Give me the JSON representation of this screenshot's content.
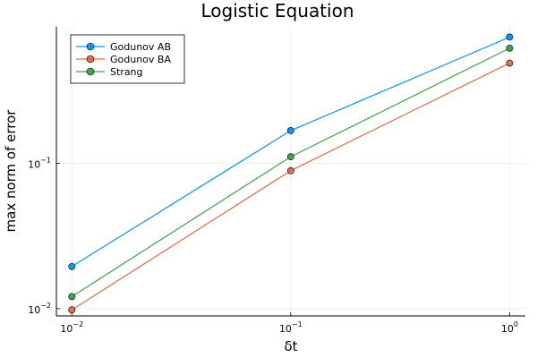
{
  "chart_data": {
    "type": "line",
    "title": "Logistic Equation",
    "xlabel": "δt",
    "ylabel": "max norm of error",
    "xscale": "log",
    "yscale": "log",
    "x": [
      0.01,
      0.1,
      1.0
    ],
    "xlim": [
      0.0085,
      1.18
    ],
    "ylim": [
      0.0089,
      0.87
    ],
    "xticks": [
      {
        "value": 0.01,
        "base": "10",
        "exp": "−2"
      },
      {
        "value": 0.1,
        "base": "10",
        "exp": "−1"
      },
      {
        "value": 1.0,
        "base": "10",
        "exp": "0"
      }
    ],
    "yticks": [
      {
        "value": 0.01,
        "base": "10",
        "exp": "−2"
      },
      {
        "value": 0.1,
        "base": "10",
        "exp": "−1"
      }
    ],
    "grid": true,
    "legend_position": "top-left",
    "series": [
      {
        "name": "Godunov AB",
        "color": "#009AFA",
        "values": [
          0.0195,
          0.168,
          0.74
        ]
      },
      {
        "name": "Godunov BA",
        "color": "#E26F46",
        "values": [
          0.0098,
          0.089,
          0.49
        ]
      },
      {
        "name": "Strang",
        "color": "#3EA44E",
        "values": [
          0.0121,
          0.111,
          0.62
        ]
      }
    ]
  }
}
